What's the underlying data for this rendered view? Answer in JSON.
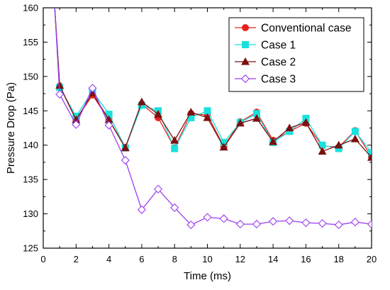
{
  "chart_data": {
    "type": "line",
    "title": "",
    "xlabel": "Time (ms)",
    "ylabel": "Pressure Drop (Pa)",
    "xlim": [
      0,
      20
    ],
    "ylim": [
      125,
      160
    ],
    "xticks": [
      0,
      2,
      4,
      6,
      8,
      10,
      12,
      14,
      16,
      18,
      20
    ],
    "yticks": [
      125,
      130,
      135,
      140,
      145,
      150,
      155,
      160
    ],
    "grid": false,
    "legend_position": "top-right",
    "x": [
      1,
      2,
      3,
      4,
      5,
      6,
      7,
      8,
      9,
      10,
      11,
      12,
      13,
      14,
      15,
      16,
      17,
      18,
      19,
      20
    ],
    "series": [
      {
        "name": "Conventional case",
        "color": "#e8231f",
        "marker": "circle",
        "start": [
          0.7,
          160
        ],
        "values": [
          148.6,
          143.7,
          147.3,
          143.7,
          139.7,
          146.0,
          144.0,
          139.6,
          144.6,
          144.4,
          139.8,
          143.4,
          144.8,
          140.7,
          142.0,
          143.2,
          139.9,
          139.7,
          142.1,
          138.3
        ]
      },
      {
        "name": "Case 1",
        "color": "#19e1de",
        "marker": "square",
        "start": [
          0.7,
          160
        ],
        "values": [
          148.4,
          144.2,
          147.9,
          144.5,
          139.6,
          145.8,
          145.0,
          139.5,
          144.0,
          145.0,
          140.4,
          143.3,
          144.6,
          140.4,
          142.0,
          143.9,
          140.0,
          139.5,
          142.0,
          138.9
        ]
      },
      {
        "name": "Case 2",
        "color": "#7b1010",
        "marker": "triangle",
        "start": [
          0.7,
          160
        ],
        "values": [
          148.7,
          143.7,
          147.6,
          143.7,
          139.6,
          146.3,
          144.5,
          140.7,
          144.8,
          144.0,
          139.7,
          143.2,
          143.9,
          140.5,
          142.5,
          143.3,
          139.1,
          140.0,
          140.9,
          138.2
        ]
      },
      {
        "name": "Case 3",
        "color": "#9b3ff0",
        "marker": "diamond",
        "start": [
          0.7,
          160
        ],
        "values": [
          147.4,
          143.0,
          148.3,
          142.9,
          137.8,
          130.6,
          133.6,
          130.9,
          128.4,
          129.5,
          129.3,
          128.5,
          128.5,
          128.9,
          129.0,
          128.7,
          128.6,
          128.4,
          128.8,
          128.5
        ]
      }
    ]
  }
}
